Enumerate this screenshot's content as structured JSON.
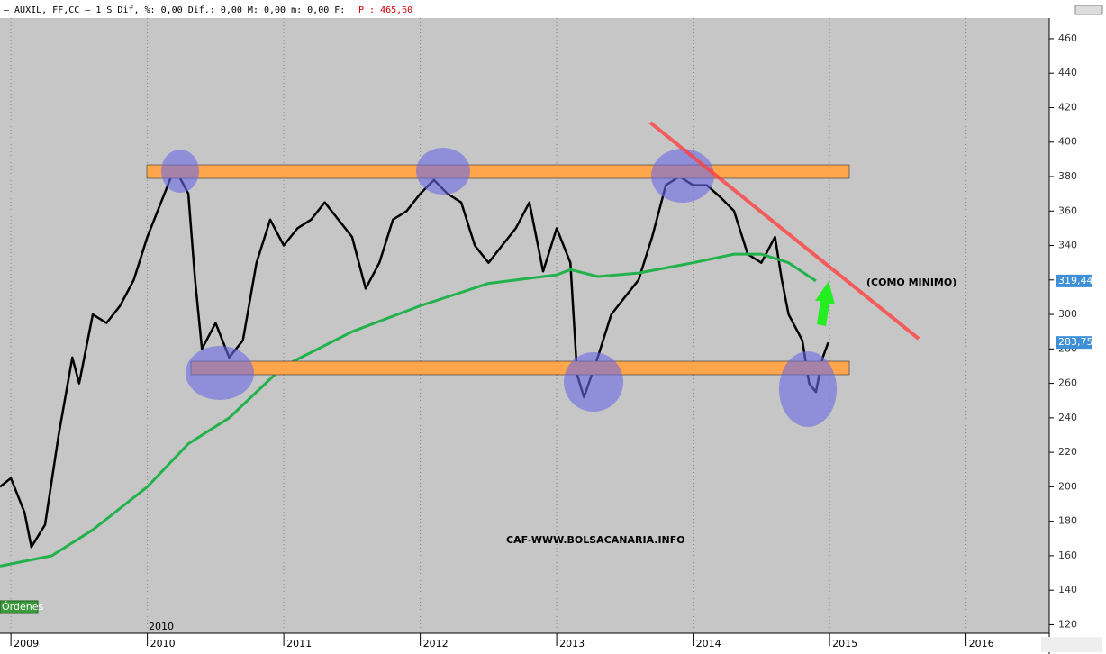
{
  "header": {
    "instrument": "– AUXIL, FF,CC –  1 S Dif,  %: 0,00 Dif.: 0,00 M: 0,00 m: 0,00 F:",
    "price": "P : 465,60"
  },
  "button": "Órdenes",
  "chart_data": {
    "type": "line",
    "annotations": [
      "(COMO MINIMO)",
      "CAF-WWW.BOLSACANARIA.INFO"
    ],
    "extra_x_label": "2010",
    "xlim": [
      2008.92,
      2016.61
    ],
    "ylim": [
      115,
      472
    ],
    "xticks": [
      2009,
      2010,
      2011,
      2012,
      2013,
      2014,
      2015,
      2016
    ],
    "yticks": [
      120,
      140,
      160,
      180,
      200,
      220,
      240,
      260,
      280,
      300,
      320,
      340,
      360,
      380,
      400,
      420,
      440,
      460
    ],
    "grid": "x",
    "series": [
      {
        "name": "Precio",
        "color": "#000000",
        "x": [
          2008.92,
          2009.0,
          2009.1,
          2009.15,
          2009.25,
          2009.35,
          2009.45,
          2009.5,
          2009.6,
          2009.7,
          2009.8,
          2009.9,
          2010.0,
          2010.1,
          2010.2,
          2010.3,
          2010.35,
          2010.4,
          2010.5,
          2010.6,
          2010.7,
          2010.8,
          2010.9,
          2011.0,
          2011.1,
          2011.2,
          2011.3,
          2011.4,
          2011.5,
          2011.6,
          2011.7,
          2011.8,
          2011.9,
          2012.0,
          2012.1,
          2012.2,
          2012.3,
          2012.4,
          2012.5,
          2012.6,
          2012.7,
          2012.8,
          2012.9,
          2013.0,
          2013.1,
          2013.15,
          2013.2,
          2013.3,
          2013.4,
          2013.5,
          2013.6,
          2013.7,
          2013.8,
          2013.9,
          2014.0,
          2014.1,
          2014.2,
          2014.3,
          2014.4,
          2014.5,
          2014.6,
          2014.65,
          2014.7,
          2014.8,
          2014.85,
          2014.9,
          2014.95,
          2014.99
        ],
        "values": [
          200,
          205,
          185,
          165,
          178,
          230,
          275,
          260,
          300,
          295,
          305,
          320,
          345,
          365,
          385,
          370,
          320,
          280,
          295,
          275,
          285,
          330,
          355,
          340,
          350,
          355,
          365,
          355,
          345,
          315,
          330,
          355,
          360,
          370,
          378,
          370,
          365,
          340,
          330,
          340,
          350,
          365,
          325,
          350,
          330,
          265,
          252,
          275,
          300,
          310,
          320,
          345,
          375,
          380,
          375,
          375,
          368,
          360,
          335,
          330,
          345,
          320,
          300,
          285,
          260,
          255,
          275,
          283.75
        ],
        "last_value": {
          "value": 283.75,
          "label": "283,75"
        }
      },
      {
        "name": "Media",
        "color": "#22b14c",
        "x": [
          2008.92,
          2009.3,
          2009.6,
          2010.0,
          2010.3,
          2010.6,
          2011.0,
          2011.5,
          2012.0,
          2012.5,
          2013.0,
          2013.1,
          2013.3,
          2013.6,
          2014.0,
          2014.3,
          2014.5,
          2014.7,
          2014.9
        ],
        "values": [
          154,
          160,
          175,
          200,
          225,
          240,
          270,
          290,
          305,
          318,
          323,
          326,
          322,
          324,
          330,
          335,
          335,
          330,
          319.44
        ],
        "last_value": {
          "value": 319.44,
          "label": "319,44"
        }
      }
    ]
  }
}
